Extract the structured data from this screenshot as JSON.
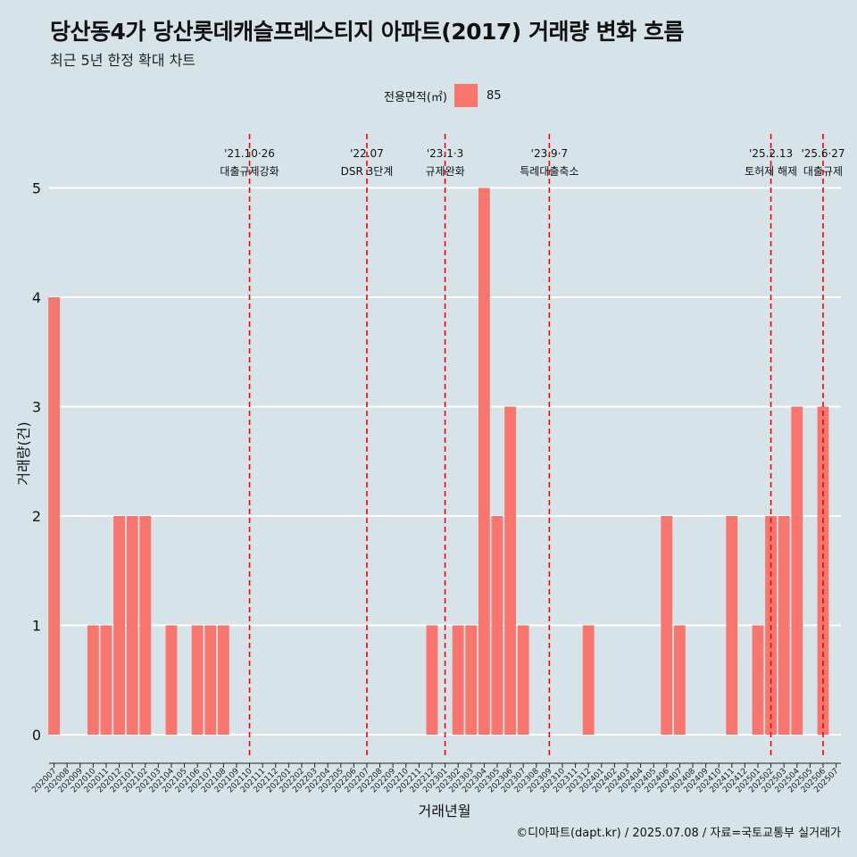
{
  "header": {
    "title": "당산동4가 당산롯데캐슬프레스티지 아파트(2017) 거래량 변화 흐름",
    "subtitle": "최근 5년 한정 확대 차트"
  },
  "legend": {
    "title": "전용면적(㎡)",
    "item": "85",
    "color": "#f8766d"
  },
  "caption": "©디아파트(dapt.kr) / 2025.07.08 / 자료=국토교통부 실거래가",
  "chart_data": {
    "type": "bar",
    "xlabel": "거래년월",
    "ylabel": "거래량(건)",
    "ylim": [
      0,
      5
    ],
    "yticks": [
      0,
      1,
      2,
      3,
      4,
      5
    ],
    "bar_color": "#f8766d",
    "categories": [
      "202007",
      "202008",
      "202009",
      "202010",
      "202011",
      "202012",
      "202101",
      "202102",
      "202103",
      "202104",
      "202105",
      "202106",
      "202107",
      "202108",
      "202109",
      "202110",
      "202111",
      "202112",
      "202201",
      "202202",
      "202203",
      "202204",
      "202205",
      "202206",
      "202207",
      "202208",
      "202209",
      "202210",
      "202211",
      "202212",
      "202301",
      "202302",
      "202303",
      "202304",
      "202305",
      "202306",
      "202307",
      "202308",
      "202309",
      "202310",
      "202311",
      "202312",
      "202401",
      "202402",
      "202403",
      "202404",
      "202405",
      "202406",
      "202407",
      "202408",
      "202409",
      "202410",
      "202411",
      "202412",
      "202501",
      "202502",
      "202503",
      "202504",
      "202505",
      "202506",
      "202507"
    ],
    "series": [
      {
        "values": [
          4,
          0,
          0,
          1,
          1,
          2,
          2,
          2,
          0,
          1,
          0,
          1,
          1,
          1,
          0,
          0,
          0,
          0,
          0,
          0,
          0,
          0,
          0,
          0,
          0,
          0,
          0,
          0,
          0,
          1,
          0,
          1,
          1,
          5,
          2,
          3,
          1,
          0,
          0,
          0,
          0,
          1,
          0,
          0,
          0,
          0,
          0,
          2,
          1,
          0,
          0,
          0,
          2,
          0,
          1,
          2,
          2,
          3,
          0,
          3,
          0
        ]
      }
    ],
    "annotations": [
      {
        "date": "'21.10·26",
        "label": "대출규제강화",
        "at": "202110"
      },
      {
        "date": "'22.07",
        "label": "DSR 3단계",
        "at": "202207"
      },
      {
        "date": "'23.1·3",
        "label": "규제완화",
        "at": "202301"
      },
      {
        "date": "'23.9·7",
        "label": "특례대출축소",
        "at": "202309"
      },
      {
        "date": "'25.2.13",
        "label": "토허제 해제",
        "at": "202502"
      },
      {
        "date": "'25.6·27",
        "label": "대출규제",
        "at": "202506"
      }
    ],
    "event_line_color": "#ff0000",
    "grid": true,
    "legend_position": "top"
  }
}
